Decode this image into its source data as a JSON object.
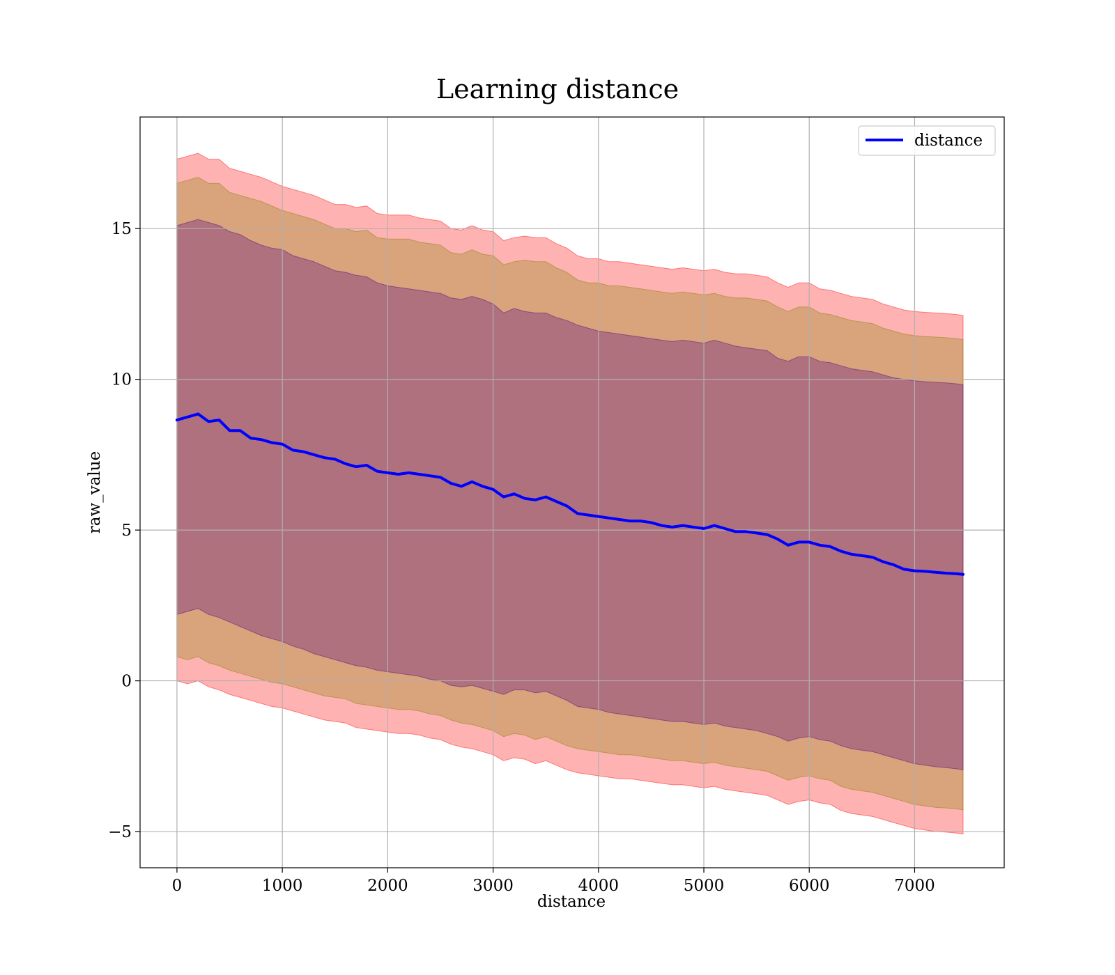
{
  "chart_data": {
    "type": "area",
    "title": "Learning distance",
    "xlabel": "distance",
    "ylabel": "raw_value",
    "xlim": [
      -350,
      7850
    ],
    "ylim": [
      -6.2,
      18.7
    ],
    "xticks": [
      0,
      1000,
      2000,
      3000,
      4000,
      5000,
      6000,
      7000
    ],
    "yticks": [
      -5,
      0,
      5,
      10,
      15
    ],
    "ytick_labels": [
      "−5",
      "0",
      "5",
      "10",
      "15"
    ],
    "grid": true,
    "legend": {
      "position": "top-right",
      "entries": [
        {
          "label": "distance",
          "color": "#0000ff"
        }
      ]
    },
    "x": [
      0,
      100,
      200,
      300,
      400,
      500,
      600,
      700,
      800,
      900,
      1000,
      1100,
      1200,
      1300,
      1400,
      1500,
      1600,
      1700,
      1800,
      1900,
      2000,
      2100,
      2200,
      2300,
      2400,
      2500,
      2600,
      2700,
      2800,
      2900,
      3000,
      3100,
      3200,
      3300,
      3400,
      3500,
      3600,
      3700,
      3800,
      3900,
      4000,
      4100,
      4200,
      4300,
      4400,
      4500,
      4600,
      4700,
      4800,
      4900,
      5000,
      5100,
      5200,
      5300,
      5400,
      5500,
      5600,
      5700,
      5800,
      5900,
      6000,
      6100,
      6200,
      6300,
      6400,
      6500,
      6600,
      6700,
      6800,
      6900,
      7000,
      7100,
      7200,
      7300,
      7400,
      7460
    ],
    "series": [
      {
        "name": "distance",
        "color": "#0000ff",
        "values": [
          8.65,
          8.75,
          8.85,
          8.6,
          8.65,
          8.3,
          8.3,
          8.05,
          8.0,
          7.9,
          7.85,
          7.65,
          7.6,
          7.5,
          7.4,
          7.35,
          7.2,
          7.1,
          7.15,
          6.95,
          6.9,
          6.85,
          6.9,
          6.85,
          6.8,
          6.75,
          6.55,
          6.45,
          6.6,
          6.45,
          6.35,
          6.1,
          6.2,
          6.05,
          6.0,
          6.1,
          5.95,
          5.8,
          5.55,
          5.5,
          5.45,
          5.4,
          5.35,
          5.3,
          5.3,
          5.25,
          5.15,
          5.1,
          5.15,
          5.1,
          5.05,
          5.15,
          5.05,
          4.95,
          4.95,
          4.9,
          4.85,
          4.7,
          4.5,
          4.6,
          4.6,
          4.5,
          4.45,
          4.3,
          4.2,
          4.15,
          4.1,
          3.95,
          3.85,
          3.7,
          3.65,
          3.63,
          3.6,
          3.57,
          3.55,
          3.53
        ]
      }
    ],
    "bands": [
      {
        "name": "band-outer",
        "color": "#ff0000",
        "opacity": 0.3,
        "lower": [
          0.0,
          -0.1,
          0.0,
          -0.2,
          -0.3,
          -0.45,
          -0.55,
          -0.65,
          -0.75,
          -0.85,
          -0.9,
          -1.0,
          -1.1,
          -1.2,
          -1.3,
          -1.35,
          -1.4,
          -1.55,
          -1.6,
          -1.65,
          -1.7,
          -1.75,
          -1.75,
          -1.8,
          -1.9,
          -1.95,
          -2.1,
          -2.2,
          -2.25,
          -2.35,
          -2.45,
          -2.65,
          -2.55,
          -2.6,
          -2.75,
          -2.65,
          -2.8,
          -2.95,
          -3.05,
          -3.1,
          -3.15,
          -3.2,
          -3.25,
          -3.25,
          -3.3,
          -3.35,
          -3.4,
          -3.45,
          -3.45,
          -3.5,
          -3.55,
          -3.5,
          -3.6,
          -3.65,
          -3.7,
          -3.75,
          -3.8,
          -3.95,
          -4.1,
          -4.0,
          -3.95,
          -4.05,
          -4.1,
          -4.3,
          -4.4,
          -4.45,
          -4.5,
          -4.6,
          -4.7,
          -4.8,
          -4.9,
          -4.95,
          -5.0,
          -5.02,
          -5.05,
          -5.08
        ],
        "upper": [
          17.3,
          17.4,
          17.5,
          17.3,
          17.3,
          17.0,
          16.9,
          16.8,
          16.7,
          16.55,
          16.4,
          16.3,
          16.2,
          16.1,
          15.95,
          15.8,
          15.8,
          15.7,
          15.75,
          15.5,
          15.45,
          15.45,
          15.45,
          15.35,
          15.3,
          15.25,
          15.0,
          14.95,
          15.1,
          14.95,
          14.9,
          14.6,
          14.7,
          14.75,
          14.7,
          14.7,
          14.5,
          14.35,
          14.1,
          14.0,
          14.0,
          13.9,
          13.9,
          13.85,
          13.8,
          13.75,
          13.7,
          13.65,
          13.7,
          13.65,
          13.6,
          13.65,
          13.55,
          13.5,
          13.5,
          13.45,
          13.4,
          13.2,
          13.05,
          13.2,
          13.2,
          13.0,
          12.95,
          12.85,
          12.75,
          12.7,
          12.65,
          12.5,
          12.4,
          12.3,
          12.25,
          12.22,
          12.2,
          12.18,
          12.15,
          12.12
        ]
      },
      {
        "name": "band-middle",
        "color": "#808000",
        "opacity": 0.3,
        "lower": [
          0.8,
          0.7,
          0.8,
          0.6,
          0.5,
          0.35,
          0.25,
          0.15,
          0.05,
          -0.05,
          -0.1,
          -0.2,
          -0.3,
          -0.4,
          -0.5,
          -0.55,
          -0.6,
          -0.75,
          -0.8,
          -0.85,
          -0.9,
          -0.95,
          -0.95,
          -1.0,
          -1.1,
          -1.15,
          -1.3,
          -1.4,
          -1.45,
          -1.55,
          -1.65,
          -1.85,
          -1.75,
          -1.8,
          -1.95,
          -1.85,
          -2.0,
          -2.15,
          -2.25,
          -2.3,
          -2.35,
          -2.4,
          -2.45,
          -2.45,
          -2.5,
          -2.55,
          -2.6,
          -2.65,
          -2.65,
          -2.7,
          -2.75,
          -2.7,
          -2.8,
          -2.85,
          -2.9,
          -2.95,
          -3.0,
          -3.15,
          -3.3,
          -3.2,
          -3.15,
          -3.25,
          -3.3,
          -3.5,
          -3.6,
          -3.65,
          -3.7,
          -3.8,
          -3.9,
          -4.0,
          -4.1,
          -4.15,
          -4.2,
          -4.22,
          -4.25,
          -4.28
        ],
        "upper": [
          16.5,
          16.6,
          16.7,
          16.5,
          16.5,
          16.2,
          16.1,
          16.0,
          15.9,
          15.75,
          15.6,
          15.5,
          15.4,
          15.3,
          15.15,
          15.0,
          15.0,
          14.9,
          14.95,
          14.7,
          14.65,
          14.65,
          14.65,
          14.55,
          14.5,
          14.45,
          14.2,
          14.15,
          14.3,
          14.15,
          14.1,
          13.8,
          13.9,
          13.95,
          13.9,
          13.9,
          13.7,
          13.55,
          13.3,
          13.2,
          13.2,
          13.1,
          13.1,
          13.05,
          13.0,
          12.95,
          12.9,
          12.85,
          12.9,
          12.85,
          12.8,
          12.85,
          12.75,
          12.7,
          12.7,
          12.65,
          12.6,
          12.4,
          12.25,
          12.4,
          12.4,
          12.2,
          12.15,
          12.05,
          11.95,
          11.9,
          11.85,
          11.7,
          11.6,
          11.5,
          11.45,
          11.42,
          11.4,
          11.38,
          11.35,
          11.32
        ]
      },
      {
        "name": "band-inner",
        "color": "#4b0082",
        "opacity": 0.3,
        "lower": [
          2.2,
          2.3,
          2.4,
          2.2,
          2.1,
          1.95,
          1.8,
          1.65,
          1.5,
          1.4,
          1.3,
          1.15,
          1.05,
          0.9,
          0.8,
          0.7,
          0.6,
          0.5,
          0.45,
          0.35,
          0.3,
          0.25,
          0.2,
          0.15,
          0.05,
          0.0,
          -0.15,
          -0.2,
          -0.15,
          -0.25,
          -0.35,
          -0.45,
          -0.3,
          -0.3,
          -0.4,
          -0.35,
          -0.5,
          -0.65,
          -0.85,
          -0.9,
          -0.95,
          -1.05,
          -1.1,
          -1.15,
          -1.2,
          -1.25,
          -1.3,
          -1.35,
          -1.35,
          -1.4,
          -1.45,
          -1.4,
          -1.5,
          -1.55,
          -1.6,
          -1.65,
          -1.75,
          -1.85,
          -2.0,
          -1.9,
          -1.85,
          -1.95,
          -2.0,
          -2.15,
          -2.25,
          -2.3,
          -2.35,
          -2.45,
          -2.55,
          -2.65,
          -2.75,
          -2.8,
          -2.85,
          -2.88,
          -2.92,
          -2.95
        ],
        "upper": [
          15.1,
          15.2,
          15.3,
          15.2,
          15.1,
          14.9,
          14.8,
          14.6,
          14.45,
          14.35,
          14.3,
          14.1,
          14.0,
          13.9,
          13.75,
          13.6,
          13.55,
          13.45,
          13.4,
          13.2,
          13.1,
          13.05,
          13.0,
          12.95,
          12.9,
          12.85,
          12.7,
          12.65,
          12.75,
          12.65,
          12.5,
          12.2,
          12.35,
          12.25,
          12.2,
          12.2,
          12.05,
          11.95,
          11.8,
          11.7,
          11.6,
          11.55,
          11.5,
          11.45,
          11.4,
          11.35,
          11.3,
          11.25,
          11.3,
          11.25,
          11.2,
          11.3,
          11.2,
          11.1,
          11.05,
          11.0,
          10.95,
          10.7,
          10.6,
          10.75,
          10.75,
          10.6,
          10.55,
          10.45,
          10.35,
          10.3,
          10.25,
          10.15,
          10.05,
          10.0,
          9.95,
          9.92,
          9.9,
          9.88,
          9.85,
          9.82
        ]
      }
    ]
  }
}
